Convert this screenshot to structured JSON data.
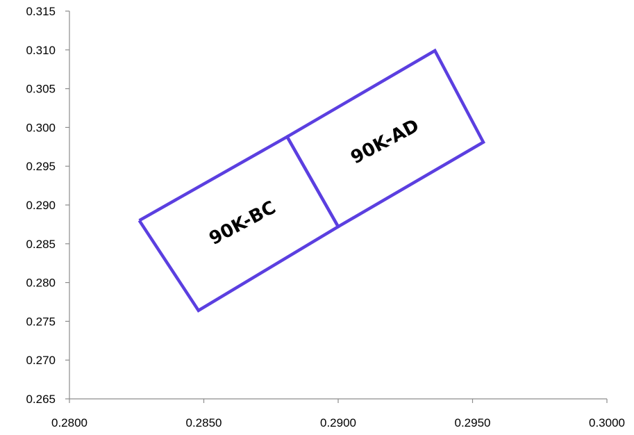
{
  "chart_data": {
    "type": "scatter",
    "title": "",
    "xlabel": "",
    "ylabel": "",
    "xlim": [
      0.28,
      0.3
    ],
    "ylim": [
      0.265,
      0.315
    ],
    "x_ticks": [
      "0.2800",
      "0.2850",
      "0.2900",
      "0.2950",
      "0.3000"
    ],
    "y_ticks": [
      "0.265",
      "0.270",
      "0.275",
      "0.280",
      "0.285",
      "0.290",
      "0.295",
      "0.300",
      "0.305",
      "0.310",
      "0.315"
    ],
    "grid": false,
    "line_color": "#5b3fe0",
    "series": [
      {
        "name": "90K-BC",
        "x": [
          0.2826,
          0.2881,
          0.29,
          0.2848,
          0.2826
        ],
        "y": [
          0.288,
          0.2988,
          0.2872,
          0.2764,
          0.288
        ]
      },
      {
        "name": "90K-AD",
        "x": [
          0.2881,
          0.2936,
          0.2954,
          0.29,
          0.2881
        ],
        "y": [
          0.2988,
          0.3099,
          0.2981,
          0.2872,
          0.2988
        ]
      }
    ],
    "annotations": [
      {
        "text": "90K-BC",
        "x": 0.28645,
        "y": 0.2876,
        "angle": -28
      },
      {
        "text": "90K-AD",
        "x": 0.29175,
        "y": 0.2981,
        "angle": -28
      }
    ]
  }
}
